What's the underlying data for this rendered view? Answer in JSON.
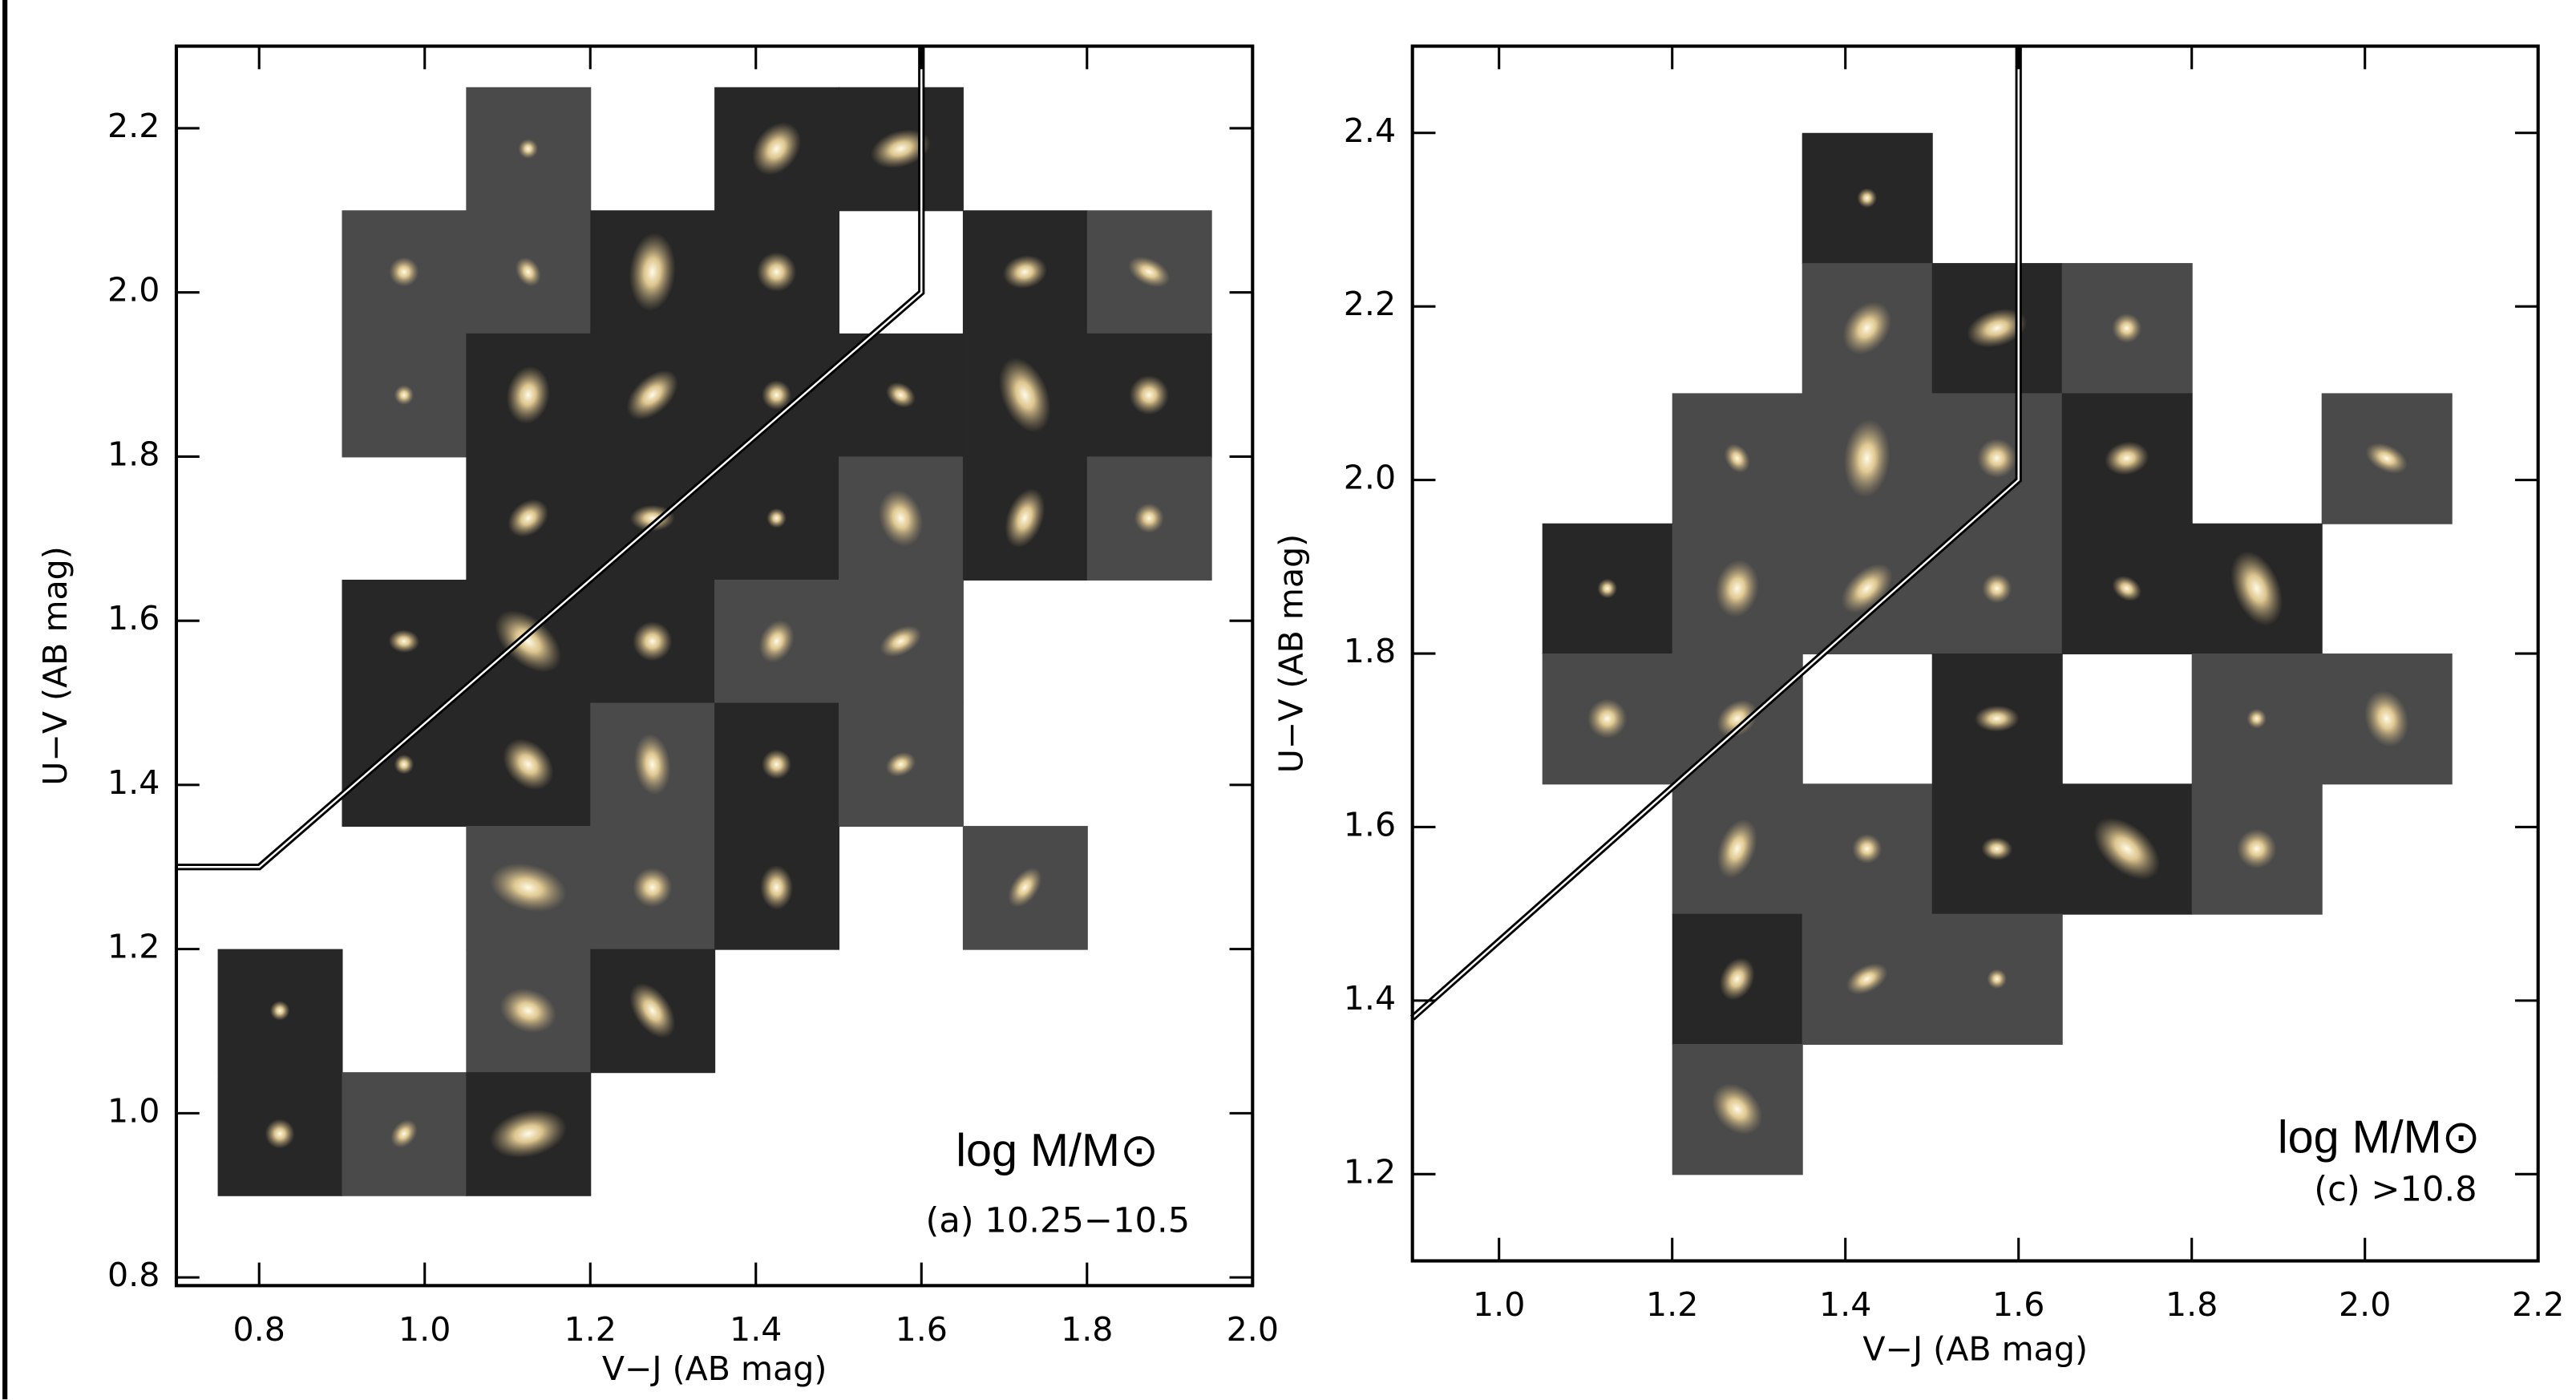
{
  "chart_data": [
    {
      "type": "tiles",
      "xlabel": "V−J (AB mag)",
      "ylabel": "U−V (AB mag)",
      "mass_label": "log M/M⊙",
      "bin_label": "(a) 10.25−10.5",
      "xlim": [
        0.7,
        2.0
      ],
      "ylim": [
        0.79,
        2.3
      ],
      "xticks": [
        0.8,
        {
          "value": 1,
          "label": "1.0"
        },
        1.2,
        1.4,
        1.6,
        1.8,
        {
          "value": 2,
          "label": "2.0"
        }
      ],
      "yticks": [
        0.8,
        {
          "value": 1,
          "label": "1.0"
        },
        1.2,
        1.4,
        1.6,
        1.8,
        {
          "value": 2,
          "label": "2.0"
        },
        2.2
      ],
      "bin_size": 0.15,
      "x": [
        1.125,
        1.425,
        1.575,
        0.975,
        1.125,
        1.275,
        1.425,
        1.725,
        1.875,
        0.975,
        1.125,
        1.275,
        1.425,
        1.575,
        1.725,
        1.875,
        1.125,
        1.275,
        1.425,
        1.575,
        1.725,
        1.875,
        0.975,
        1.125,
        1.275,
        1.425,
        1.575,
        0.975,
        1.125,
        1.275,
        1.425,
        1.575,
        1.125,
        1.275,
        1.425,
        1.725,
        0.825,
        1.125,
        1.275,
        0.825,
        0.975,
        1.125
      ],
      "values": [
        2.175,
        2.175,
        2.175,
        2.025,
        2.025,
        2.025,
        2.025,
        2.025,
        2.025,
        1.875,
        1.875,
        1.875,
        1.875,
        1.875,
        1.875,
        1.875,
        1.725,
        1.725,
        1.725,
        1.725,
        1.725,
        1.725,
        1.575,
        1.575,
        1.575,
        1.575,
        1.575,
        1.425,
        1.425,
        1.425,
        1.425,
        1.425,
        1.275,
        1.275,
        1.275,
        1.275,
        1.125,
        1.125,
        1.125,
        0.975,
        0.975,
        0.975
      ],
      "colors": [
        "#4a4a4a",
        "#272727",
        "#272727",
        "#4a4a4a",
        "#4a4a4a",
        "#272727",
        "#272727",
        "#272727",
        "#4a4a4a",
        "#4a4a4a",
        "#272727",
        "#272727",
        "#272727",
        "#272727",
        "#272727",
        "#272727",
        "#272727",
        "#272727",
        "#272727",
        "#4a4a4a",
        "#272727",
        "#4a4a4a",
        "#272727",
        "#272727",
        "#272727",
        "#4a4a4a",
        "#4a4a4a",
        "#272727",
        "#272727",
        "#4a4a4a",
        "#272727",
        "#4a4a4a",
        "#4a4a4a",
        "#4a4a4a",
        "#272727",
        "#4a4a4a",
        "#272727",
        "#4a4a4a",
        "#272727",
        "#272727",
        "#4a4a4a",
        "#272727"
      ],
      "boundary": {
        "x": [
          0.7,
          0.8,
          1.6,
          1.6
        ],
        "y": [
          1.3,
          1.3,
          2.0,
          2.3
        ]
      }
    },
    {
      "type": "tiles",
      "xlabel": "V−J (AB mag)",
      "ylabel": "U−V (AB mag)",
      "mass_label": "log M/M⊙",
      "bin_label": "(c) >10.8",
      "xlim": [
        0.9,
        2.2
      ],
      "ylim": [
        1.1,
        2.5
      ],
      "xticks": [
        {
          "value": 1,
          "label": "1.0"
        },
        1.2,
        1.4,
        1.6,
        1.8,
        {
          "value": 2,
          "label": "2.0"
        },
        2.2
      ],
      "yticks": [
        1.2,
        1.4,
        1.6,
        1.8,
        {
          "value": 2,
          "label": "2.0"
        },
        2.2,
        2.4
      ],
      "bin_size": 0.15,
      "x": [
        1.425,
        1.425,
        1.575,
        1.725,
        1.275,
        1.425,
        1.575,
        1.725,
        2.025,
        1.125,
        1.275,
        1.425,
        1.575,
        1.725,
        1.875,
        1.125,
        1.275,
        1.575,
        1.875,
        2.025,
        1.275,
        1.425,
        1.575,
        1.725,
        1.875,
        1.275,
        1.425,
        1.575,
        1.275
      ],
      "values": [
        2.325,
        2.175,
        2.175,
        2.175,
        2.025,
        2.025,
        2.025,
        2.025,
        2.025,
        1.875,
        1.875,
        1.875,
        1.875,
        1.875,
        1.875,
        1.725,
        1.725,
        1.725,
        1.725,
        1.725,
        1.575,
        1.575,
        1.575,
        1.575,
        1.575,
        1.425,
        1.425,
        1.425,
        1.275
      ],
      "colors": [
        "#272727",
        "#4a4a4a",
        "#272727",
        "#4a4a4a",
        "#4a4a4a",
        "#4a4a4a",
        "#4a4a4a",
        "#272727",
        "#4a4a4a",
        "#272727",
        "#4a4a4a",
        "#4a4a4a",
        "#4a4a4a",
        "#272727",
        "#272727",
        "#4a4a4a",
        "#4a4a4a",
        "#272727",
        "#4a4a4a",
        "#4a4a4a",
        "#4a4a4a",
        "#4a4a4a",
        "#272727",
        "#272727",
        "#4a4a4a",
        "#272727",
        "#4a4a4a",
        "#4a4a4a",
        "#4a4a4a"
      ],
      "boundary": {
        "x": [
          0.9,
          1.6,
          1.6
        ],
        "y": [
          1.38,
          2.0,
          2.5
        ]
      }
    }
  ]
}
